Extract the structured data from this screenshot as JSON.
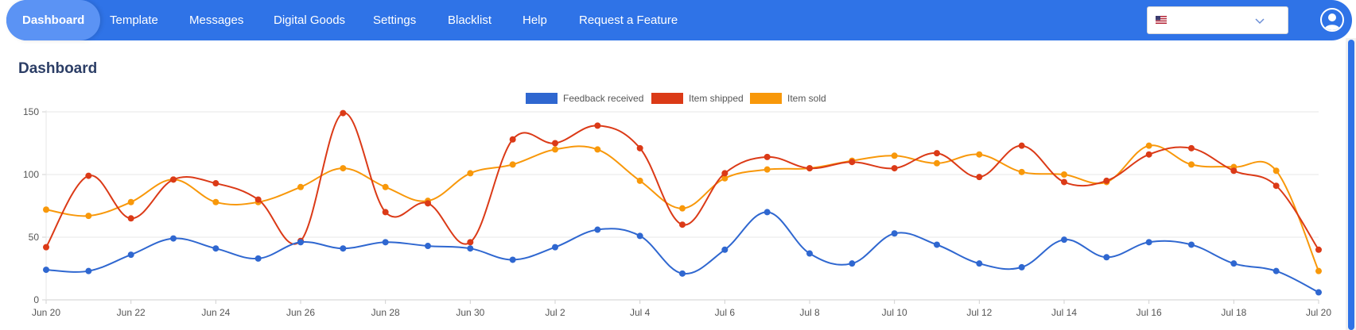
{
  "nav": {
    "items": [
      {
        "label": "Dashboard",
        "active": true
      },
      {
        "label": "Template"
      },
      {
        "label": "Messages"
      },
      {
        "label": "Digital Goods"
      },
      {
        "label": "Settings"
      },
      {
        "label": "Blacklist"
      },
      {
        "label": "Help"
      },
      {
        "label": "Request a Feature"
      }
    ]
  },
  "language_select": {
    "flag_icon": "us-flag-icon"
  },
  "page": {
    "title": "Dashboard"
  },
  "colors": {
    "nav_bg": "#2f73e7",
    "feedback": "#2f67d0",
    "shipped": "#db3a17",
    "sold": "#f8980a"
  },
  "chart_data": {
    "type": "line",
    "legend_position": "top",
    "grid": true,
    "x": [
      "Jun 20",
      "Jun 21",
      "Jun 22",
      "Jun 23",
      "Jun 24",
      "Jun 25",
      "Jun 26",
      "Jun 27",
      "Jun 28",
      "Jun 29",
      "Jun 30",
      "Jul 1",
      "Jul 2",
      "Jul 3",
      "Jul 4",
      "Jul 5",
      "Jul 6",
      "Jul 7",
      "Jul 8",
      "Jul 9",
      "Jul 10",
      "Jul 11",
      "Jul 12",
      "Jul 13",
      "Jul 14",
      "Jul 15",
      "Jul 16",
      "Jul 17",
      "Jul 18",
      "Jul 19",
      "Jul 20"
    ],
    "x_tick_labels": [
      "Jun 20",
      "Jun 22",
      "Jun 24",
      "Jun 26",
      "Jun 28",
      "Jun 30",
      "Jul 2",
      "Jul 4",
      "Jul 6",
      "Jul 8",
      "Jul 10",
      "Jul 12",
      "Jul 14",
      "Jul 16",
      "Jul 18",
      "Jul 20"
    ],
    "y_ticks": [
      0,
      50,
      100,
      150
    ],
    "ylim": [
      0,
      150
    ],
    "series": [
      {
        "name": "Feedback received",
        "color": "#2f67d0",
        "values": [
          24,
          23,
          36,
          49,
          41,
          33,
          46,
          41,
          46,
          43,
          41,
          32,
          42,
          56,
          51,
          21,
          40,
          70,
          37,
          29,
          53,
          44,
          29,
          26,
          48,
          34,
          46,
          44,
          29,
          23,
          6
        ]
      },
      {
        "name": "Item shipped",
        "color": "#db3a17",
        "values": [
          42,
          99,
          65,
          96,
          93,
          80,
          47,
          149,
          70,
          77,
          46,
          128,
          125,
          139,
          121,
          60,
          101,
          114,
          105,
          110,
          105,
          117,
          98,
          123,
          94,
          95,
          116,
          121,
          103,
          91,
          40
        ]
      },
      {
        "name": "Item sold",
        "color": "#f8980a",
        "values": [
          72,
          67,
          78,
          96,
          78,
          78,
          90,
          105,
          90,
          79,
          101,
          108,
          120,
          120,
          95,
          73,
          97,
          104,
          105,
          111,
          115,
          109,
          116,
          102,
          100,
          94,
          123,
          108,
          106,
          103,
          23
        ]
      }
    ]
  }
}
